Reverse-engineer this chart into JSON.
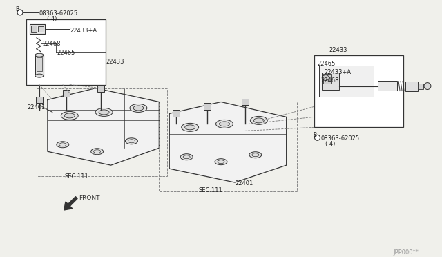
{
  "background_color": "#f0f0eb",
  "line_color": "#333333",
  "diagram_color": "#444444",
  "watermark": "JPP000**",
  "figsize": [
    6.4,
    3.72
  ],
  "dpi": 100,
  "labels": {
    "bolt_tl": "B",
    "part_tl_1": "08363-62025",
    "part_tl_2": "(4)",
    "box_tl_label1": "22433+A",
    "box_tl_label2": "22468",
    "box_tl_label3": "22465",
    "box_tl_label4": "22433",
    "left_22401": "22401",
    "sec111_left": "SEC.111",
    "front_label": "FRONT",
    "right_box_above": "22433",
    "right_box_1": "22465",
    "right_box_2": "22433+A",
    "right_box_3": "22468",
    "bolt_br": "B",
    "part_br_1": "08363-62025",
    "part_br_2": "(4)",
    "right_22401": "22401",
    "sec111_right": "SEC.111"
  }
}
